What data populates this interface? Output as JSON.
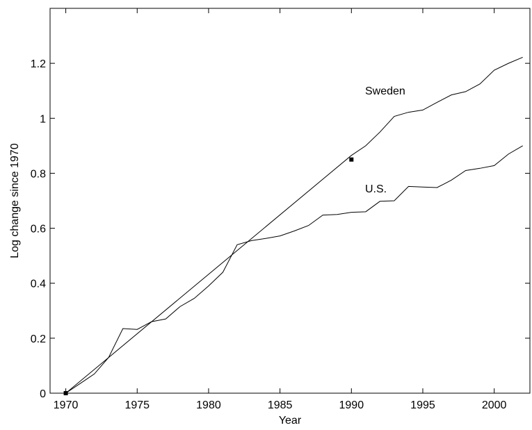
{
  "chart_data": {
    "type": "line",
    "xlabel": "Year",
    "ylabel": "Log change since 1970",
    "xlim": [
      1968.9,
      2002.5
    ],
    "xticks": [
      1970,
      1975,
      1980,
      1985,
      1990,
      1995,
      2000
    ],
    "ylim": [
      0,
      1.4
    ],
    "yticks": [
      0,
      0.2,
      0.4,
      0.6,
      0.8,
      1,
      1.2
    ],
    "series": [
      {
        "name": "U.S.",
        "color": "#000000",
        "x": [
          1970,
          1971,
          1972,
          1973,
          1974,
          1975,
          1976,
          1977,
          1978,
          1979,
          1980,
          1981,
          1982,
          1983,
          1984,
          1985,
          1986,
          1987,
          1988,
          1989,
          1990,
          1991,
          1992,
          1993,
          1994,
          1995,
          1996,
          1997,
          1998,
          1999,
          2000,
          2001,
          2002
        ],
        "values": [
          0,
          0.035,
          0.07,
          0.13,
          0.235,
          0.232,
          0.26,
          0.27,
          0.315,
          0.345,
          0.39,
          0.44,
          0.54,
          0.555,
          0.563,
          0.572,
          0.59,
          0.61,
          0.648,
          0.65,
          0.658,
          0.66,
          0.698,
          0.7,
          0.752,
          0.75,
          0.748,
          0.775,
          0.81,
          0.818,
          0.828,
          0.87,
          0.9
        ]
      },
      {
        "name": "Sweden",
        "color": "#000000",
        "x": [
          1970,
          1990,
          1991,
          1992,
          1993,
          1994,
          1995,
          1996,
          1997,
          1998,
          1999,
          2000,
          2001,
          2002
        ],
        "values": [
          0,
          0.865,
          0.9,
          0.95,
          1.007,
          1.022,
          1.03,
          1.058,
          1.085,
          1.097,
          1.125,
          1.175,
          1.2,
          1.222
        ]
      }
    ],
    "markers": {
      "color": "#000000",
      "x": [
        1970,
        1990
      ],
      "values": [
        0,
        0.85
      ]
    }
  }
}
